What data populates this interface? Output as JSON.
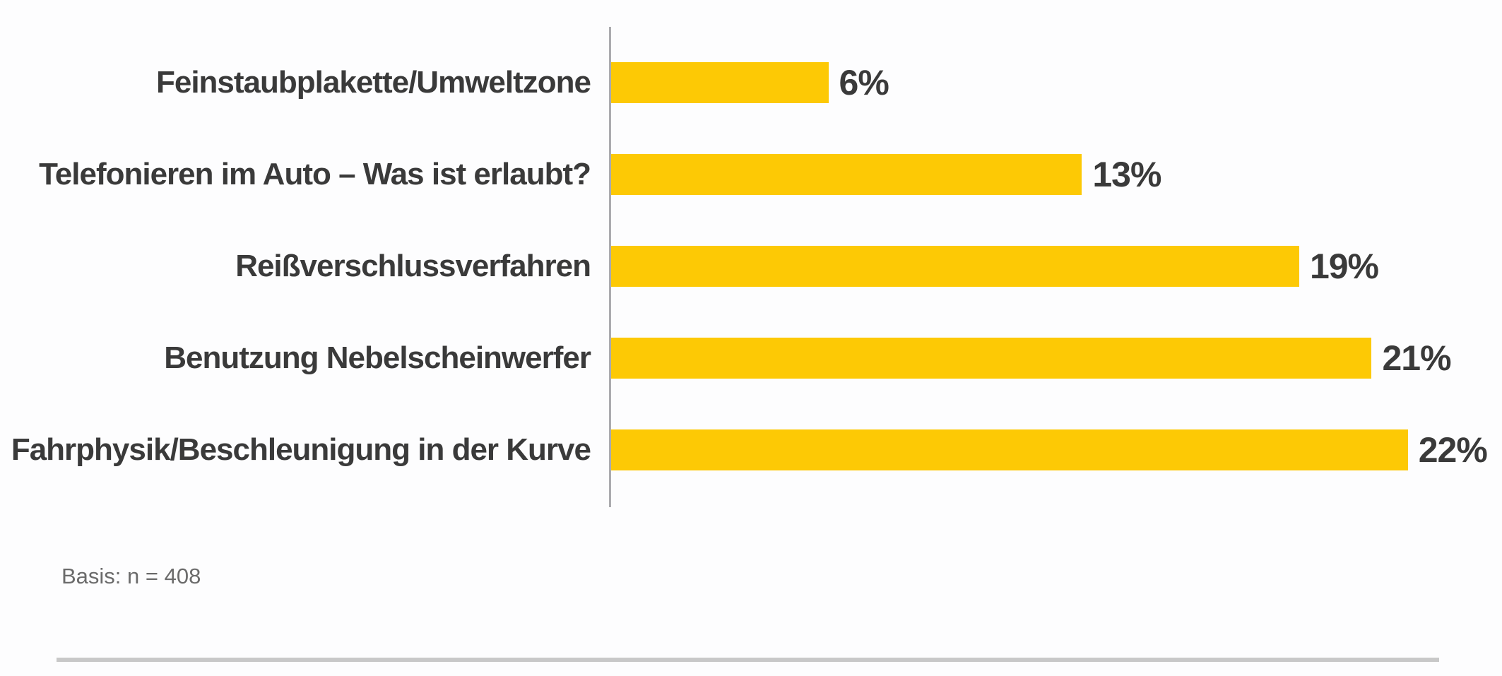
{
  "page": {
    "background": "#fdfdfe"
  },
  "chart_data": {
    "type": "bar",
    "orientation": "horizontal",
    "title": "",
    "xlabel": "",
    "ylabel": "",
    "categories": [
      "Feinstaubplakette/Umweltzone",
      "Telefonieren im Auto – Was ist erlaubt?",
      "Reißverschlussverfahren",
      "Benutzung Nebelscheinwerfer",
      "Fahrphysik/Beschleunigung in der Kurve"
    ],
    "values": [
      6,
      13,
      19,
      21,
      22
    ],
    "value_labels": [
      "6%",
      "13%",
      "19%",
      "21%",
      "22%"
    ],
    "xlim": [
      0,
      24.6
    ],
    "grid": false,
    "legend": null,
    "bar_color": "#fdc905",
    "axis_color": "#ababaf",
    "label_color": "#3a3a3a",
    "note_color": "#6b6b6b",
    "divider_color": "#c8c8c8"
  },
  "footer": {
    "basis_note": "Basis: n = 408"
  }
}
